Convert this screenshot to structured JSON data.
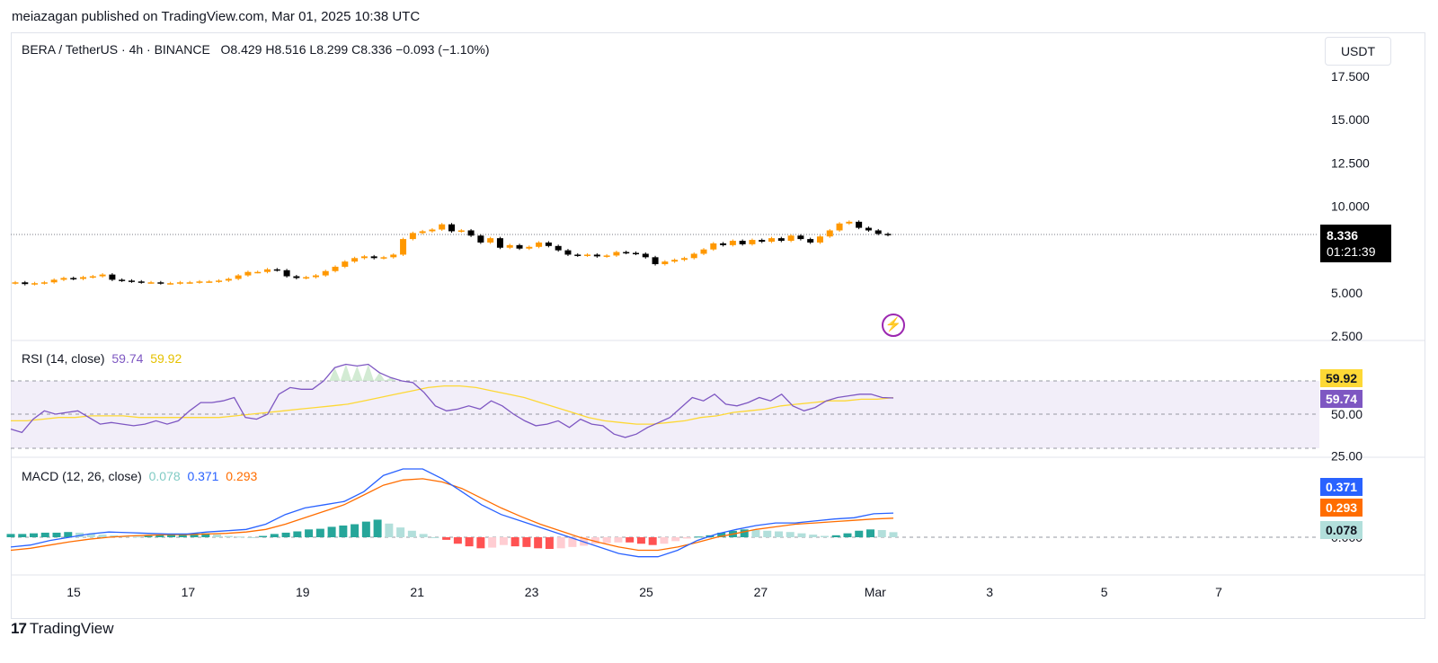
{
  "header": {
    "publish_note": "meiazagan published on TradingView.com, Mar 01, 2025 10:38 UTC"
  },
  "symbol": {
    "title": "BERA / TetherUS · 4h · BINANCE",
    "o_label": "O",
    "o_value": "8.429",
    "h_label": "H",
    "h_value": "8.516",
    "l_label": "L",
    "l_value": "8.299",
    "c_label": "C",
    "c_value": "8.336",
    "change": "−0.093 (−1.10%)"
  },
  "currency": "USDT",
  "price_axis": {
    "ticks": [
      "17.500",
      "15.000",
      "12.500",
      "10.000",
      "5.000",
      "2.500"
    ]
  },
  "last_price": {
    "value": "8.336",
    "countdown": "01:21:39"
  },
  "rsi": {
    "label": "RSI (14, close)",
    "value": "59.74",
    "ma_value": "59.92",
    "ticks": [
      "50.00",
      "25.00"
    ]
  },
  "macd": {
    "label": "MACD (12, 26, close)",
    "hist_value": "0.078",
    "macd_value": "0.371",
    "signal_value": "0.293",
    "ticks": [
      "0.000"
    ]
  },
  "time_axis": {
    "labels": [
      "15",
      "17",
      "19",
      "21",
      "23",
      "25",
      "27",
      "Mar",
      "3",
      "5",
      "7"
    ]
  },
  "colors": {
    "up": "#ff9800",
    "down": "#000000",
    "rsi_line": "#7e57c2",
    "rsi_ma": "#fdd835",
    "macd_line": "#2962ff",
    "signal_line": "#ff6d00",
    "hist_pos_strong": "#26a69a",
    "hist_pos_weak": "#b2dfdb",
    "hist_neg_strong": "#ff5252",
    "hist_neg_weak": "#ffcdd2"
  },
  "brand": "TradingView",
  "chart_data": [
    {
      "type": "candlestick",
      "title": "BERA / TetherUS · 4h · BINANCE",
      "y_ticks": [
        2.5,
        5,
        10,
        12.5,
        15,
        17.5
      ],
      "x_labels": [
        "15",
        "17",
        "19",
        "21",
        "23",
        "25",
        "27",
        "Mar",
        "3",
        "5",
        "7"
      ],
      "closes": [
        5.6,
        5.5,
        5.55,
        5.6,
        5.75,
        5.85,
        5.8,
        5.9,
        5.95,
        6.05,
        5.75,
        5.7,
        5.65,
        5.6,
        5.6,
        5.55,
        5.55,
        5.6,
        5.6,
        5.65,
        5.65,
        5.7,
        5.8,
        6.0,
        6.2,
        6.2,
        6.35,
        6.3,
        5.95,
        5.85,
        5.9,
        6.0,
        6.25,
        6.5,
        6.8,
        7.0,
        7.1,
        7.0,
        7.05,
        7.2,
        8.1,
        8.45,
        8.55,
        8.65,
        8.95,
        8.55,
        8.6,
        8.3,
        7.9,
        8.15,
        7.6,
        7.75,
        7.55,
        7.65,
        7.9,
        7.7,
        7.45,
        7.2,
        7.15,
        7.2,
        7.1,
        7.15,
        7.35,
        7.3,
        7.25,
        7.05,
        6.65,
        6.8,
        6.9,
        7.0,
        7.25,
        7.5,
        7.85,
        7.75,
        8.0,
        7.8,
        8.05,
        7.95,
        8.15,
        8.0,
        8.3,
        8.1,
        7.9,
        8.25,
        8.6,
        9.0,
        9.1,
        8.75,
        8.6,
        8.4,
        8.336
      ],
      "rsi": [
        41,
        39,
        47,
        52,
        50,
        51,
        52,
        48,
        44,
        45,
        44,
        43,
        44,
        46,
        44,
        46,
        52,
        57,
        57,
        58,
        60,
        48,
        47,
        50,
        62,
        66,
        65,
        65,
        70,
        78,
        80,
        79,
        80,
        75,
        72,
        70,
        69,
        63,
        55,
        52,
        53,
        55,
        53,
        58,
        55,
        50,
        46,
        43,
        44,
        46,
        42,
        47,
        44,
        43,
        38,
        36,
        38,
        42,
        45,
        48,
        54,
        60,
        58,
        62,
        56,
        55,
        57,
        60,
        58,
        62,
        55,
        52,
        54,
        58,
        60,
        61,
        62,
        62,
        60,
        59.74
      ],
      "rsi_ma": [
        46,
        46,
        47,
        48,
        48,
        49,
        49,
        49,
        48,
        48,
        48,
        48,
        48,
        48,
        49,
        50,
        51,
        52,
        53,
        54,
        55,
        56,
        58,
        60,
        62,
        64,
        66,
        67,
        67,
        66,
        64,
        62,
        60,
        57,
        54,
        51,
        48,
        46,
        45,
        44,
        44,
        45,
        46,
        48,
        49,
        51,
        52,
        53,
        55,
        56,
        57,
        58,
        58,
        59,
        59,
        59.92
      ],
      "macd_line": [
        -0.15,
        -0.12,
        -0.05,
        0.0,
        0.05,
        0.08,
        0.07,
        0.06,
        0.05,
        0.05,
        0.08,
        0.1,
        0.12,
        0.2,
        0.35,
        0.45,
        0.5,
        0.55,
        0.7,
        0.95,
        1.05,
        1.05,
        0.9,
        0.7,
        0.5,
        0.35,
        0.25,
        0.15,
        0.05,
        -0.05,
        -0.15,
        -0.25,
        -0.3,
        -0.3,
        -0.2,
        -0.05,
        0.05,
        0.12,
        0.18,
        0.22,
        0.22,
        0.25,
        0.28,
        0.3,
        0.36,
        0.371
      ],
      "signal_line": [
        -0.2,
        -0.17,
        -0.12,
        -0.07,
        -0.03,
        0.0,
        0.02,
        0.03,
        0.04,
        0.04,
        0.05,
        0.06,
        0.08,
        0.12,
        0.2,
        0.3,
        0.4,
        0.5,
        0.65,
        0.8,
        0.88,
        0.9,
        0.85,
        0.75,
        0.6,
        0.45,
        0.32,
        0.2,
        0.1,
        0.0,
        -0.08,
        -0.15,
        -0.2,
        -0.2,
        -0.15,
        -0.08,
        0.0,
        0.06,
        0.12,
        0.16,
        0.2,
        0.22,
        0.24,
        0.26,
        0.28,
        0.293
      ],
      "histogram": [
        0.05,
        0.05,
        0.06,
        0.07,
        0.07,
        0.08,
        0.07,
        0.05,
        0.04,
        0.03,
        0.02,
        0.01,
        0.02,
        0.04,
        0.05,
        0.05,
        0.06,
        0.06,
        0.04,
        0.02,
        0.01,
        0.0,
        0.02,
        0.05,
        0.07,
        0.09,
        0.12,
        0.13,
        0.16,
        0.18,
        0.2,
        0.24,
        0.27,
        0.21,
        0.15,
        0.1,
        0.05,
        0.0,
        -0.04,
        -0.1,
        -0.14,
        -0.17,
        -0.16,
        -0.12,
        -0.14,
        -0.15,
        -0.17,
        -0.18,
        -0.17,
        -0.15,
        -0.13,
        -0.1,
        -0.09,
        -0.08,
        -0.08,
        -0.1,
        -0.12,
        -0.1,
        -0.06,
        -0.02,
        0.01,
        0.03,
        0.07,
        0.1,
        0.12,
        0.11,
        0.1,
        0.09,
        0.08,
        0.06,
        0.04,
        0.02,
        0.03,
        0.06,
        0.1,
        0.12,
        0.11,
        0.078
      ]
    }
  ]
}
